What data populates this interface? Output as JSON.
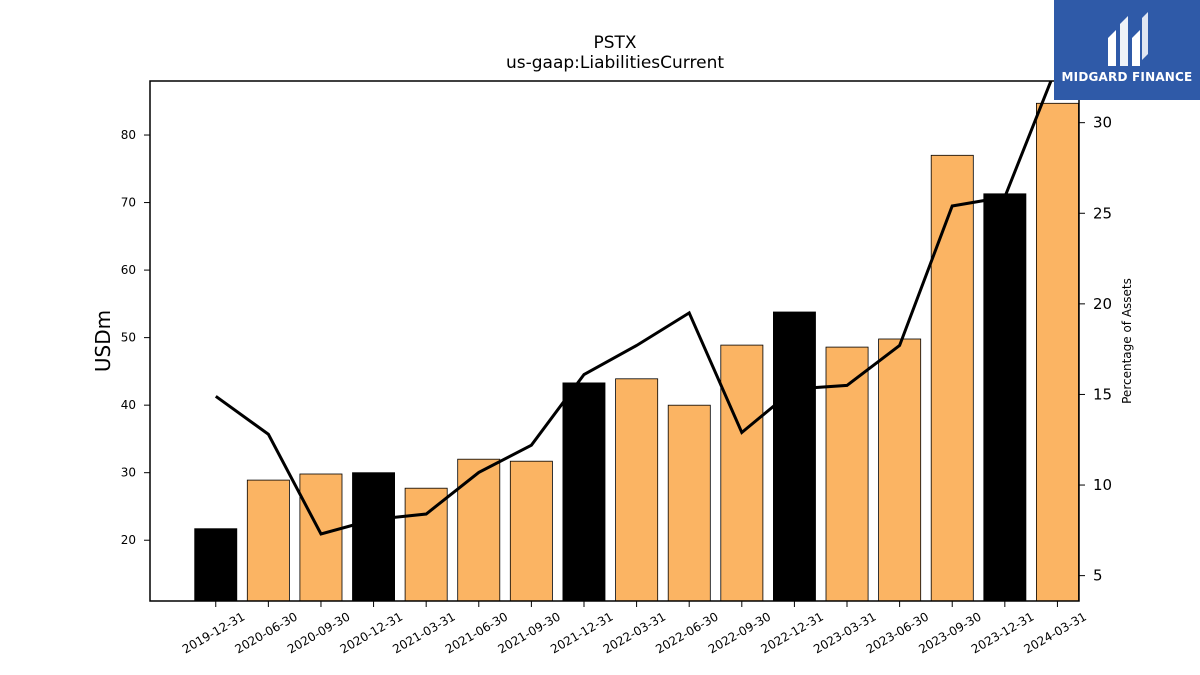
{
  "chart_data": {
    "type": "bar",
    "title": "PSTX",
    "subtitle": "us-gaap:LiabilitiesCurrent",
    "ylabel": "USDm",
    "y2label": "Percentage of Assets",
    "categories": [
      "2019-12-31",
      "2020-06-30",
      "2020-09-30",
      "2020-12-31",
      "2021-03-31",
      "2021-06-30",
      "2021-09-30",
      "2021-12-31",
      "2022-03-31",
      "2022-06-30",
      "2022-09-30",
      "2022-12-31",
      "2023-03-31",
      "2023-06-30",
      "2023-09-30",
      "2023-12-31",
      "2024-03-31"
    ],
    "series": [
      {
        "type": "bar",
        "axis": "left",
        "values": [
          21.7,
          28.9,
          29.8,
          30.0,
          27.7,
          32.0,
          31.7,
          43.3,
          43.9,
          40.0,
          48.9,
          53.8,
          48.6,
          49.8,
          77.0,
          71.3,
          84.7
        ],
        "highlight": [
          true,
          false,
          false,
          true,
          false,
          false,
          false,
          true,
          false,
          false,
          false,
          true,
          false,
          false,
          false,
          true,
          false
        ]
      },
      {
        "type": "line",
        "axis": "right",
        "values": [
          14.9,
          12.8,
          7.3,
          8.1,
          8.4,
          10.7,
          12.2,
          16.1,
          17.7,
          19.5,
          12.9,
          15.3,
          15.5,
          17.7,
          25.4,
          25.9,
          33.2
        ]
      }
    ],
    "ylim": [
      11,
      88
    ],
    "yticks": [
      20,
      30,
      40,
      50,
      60,
      70,
      80
    ],
    "y2lim": [
      3.6,
      32.3
    ],
    "y2ticks": [
      5,
      10,
      15,
      20,
      25,
      30
    ],
    "colors": {
      "bar": "#fbb463",
      "highlight": "#000000",
      "line": "#000000"
    },
    "grid": false,
    "legend": "none"
  },
  "logo": {
    "text": "MIDGARD FINANCE",
    "icon": "midgard-logo-icon"
  }
}
